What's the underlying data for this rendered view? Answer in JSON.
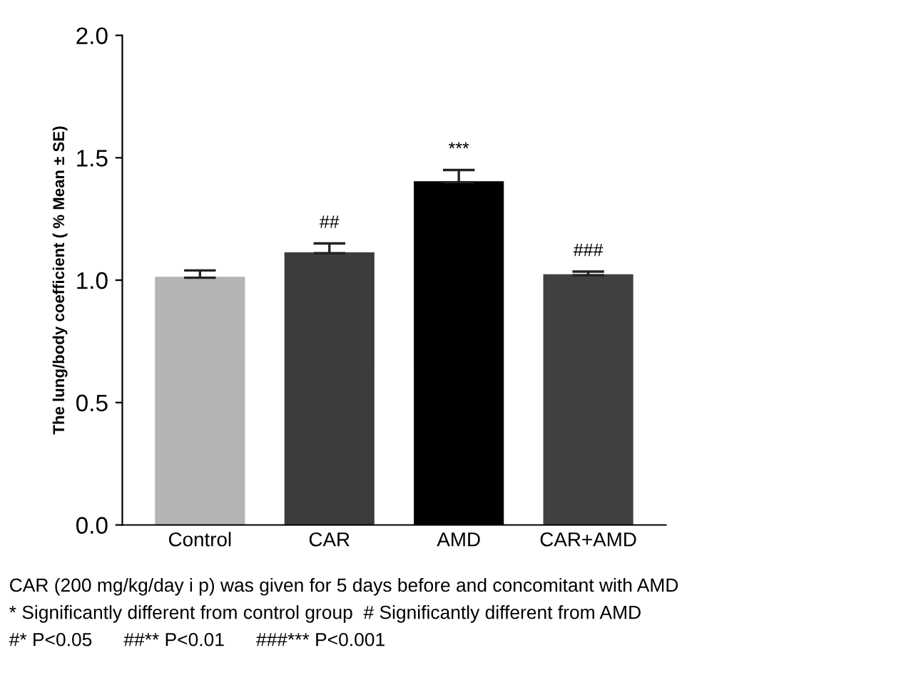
{
  "chart_data": {
    "type": "bar",
    "ylabel": "The lung/body coefficient ( % Mean ± SE)",
    "categories": [
      "Control",
      "CAR",
      "AMD",
      "CAR+AMD"
    ],
    "values": [
      1.01,
      1.11,
      1.4,
      1.02
    ],
    "errors": [
      0.03,
      0.04,
      0.05,
      0.015
    ],
    "colors": [
      "#b4b4b4",
      "#3c3c3c",
      "#000000",
      "#404040"
    ],
    "ylim": [
      0,
      2.0
    ],
    "yticks": [
      {
        "value": 0,
        "label": "0.0"
      },
      0.5,
      {
        "value": 1,
        "label": "1.0"
      },
      1.5,
      {
        "value": 2,
        "label": "2.0"
      }
    ],
    "grid": false,
    "legend": false,
    "annotations": [
      {
        "text": "##",
        "x": "CAR",
        "y": 1.15
      },
      {
        "text": "***",
        "x": "AMD",
        "y": 1.45
      },
      {
        "text": "###",
        "x": "CAR+AMD",
        "y": 1.035
      },
      "CAR (200 mg/kg/day i p) was given for 5 days before and concomitant with AMD",
      "* Significantly different from control group  # Significantly different from AMD",
      "#* P<0.05      ##** P<0.01      ###*** P<0.001"
    ]
  }
}
